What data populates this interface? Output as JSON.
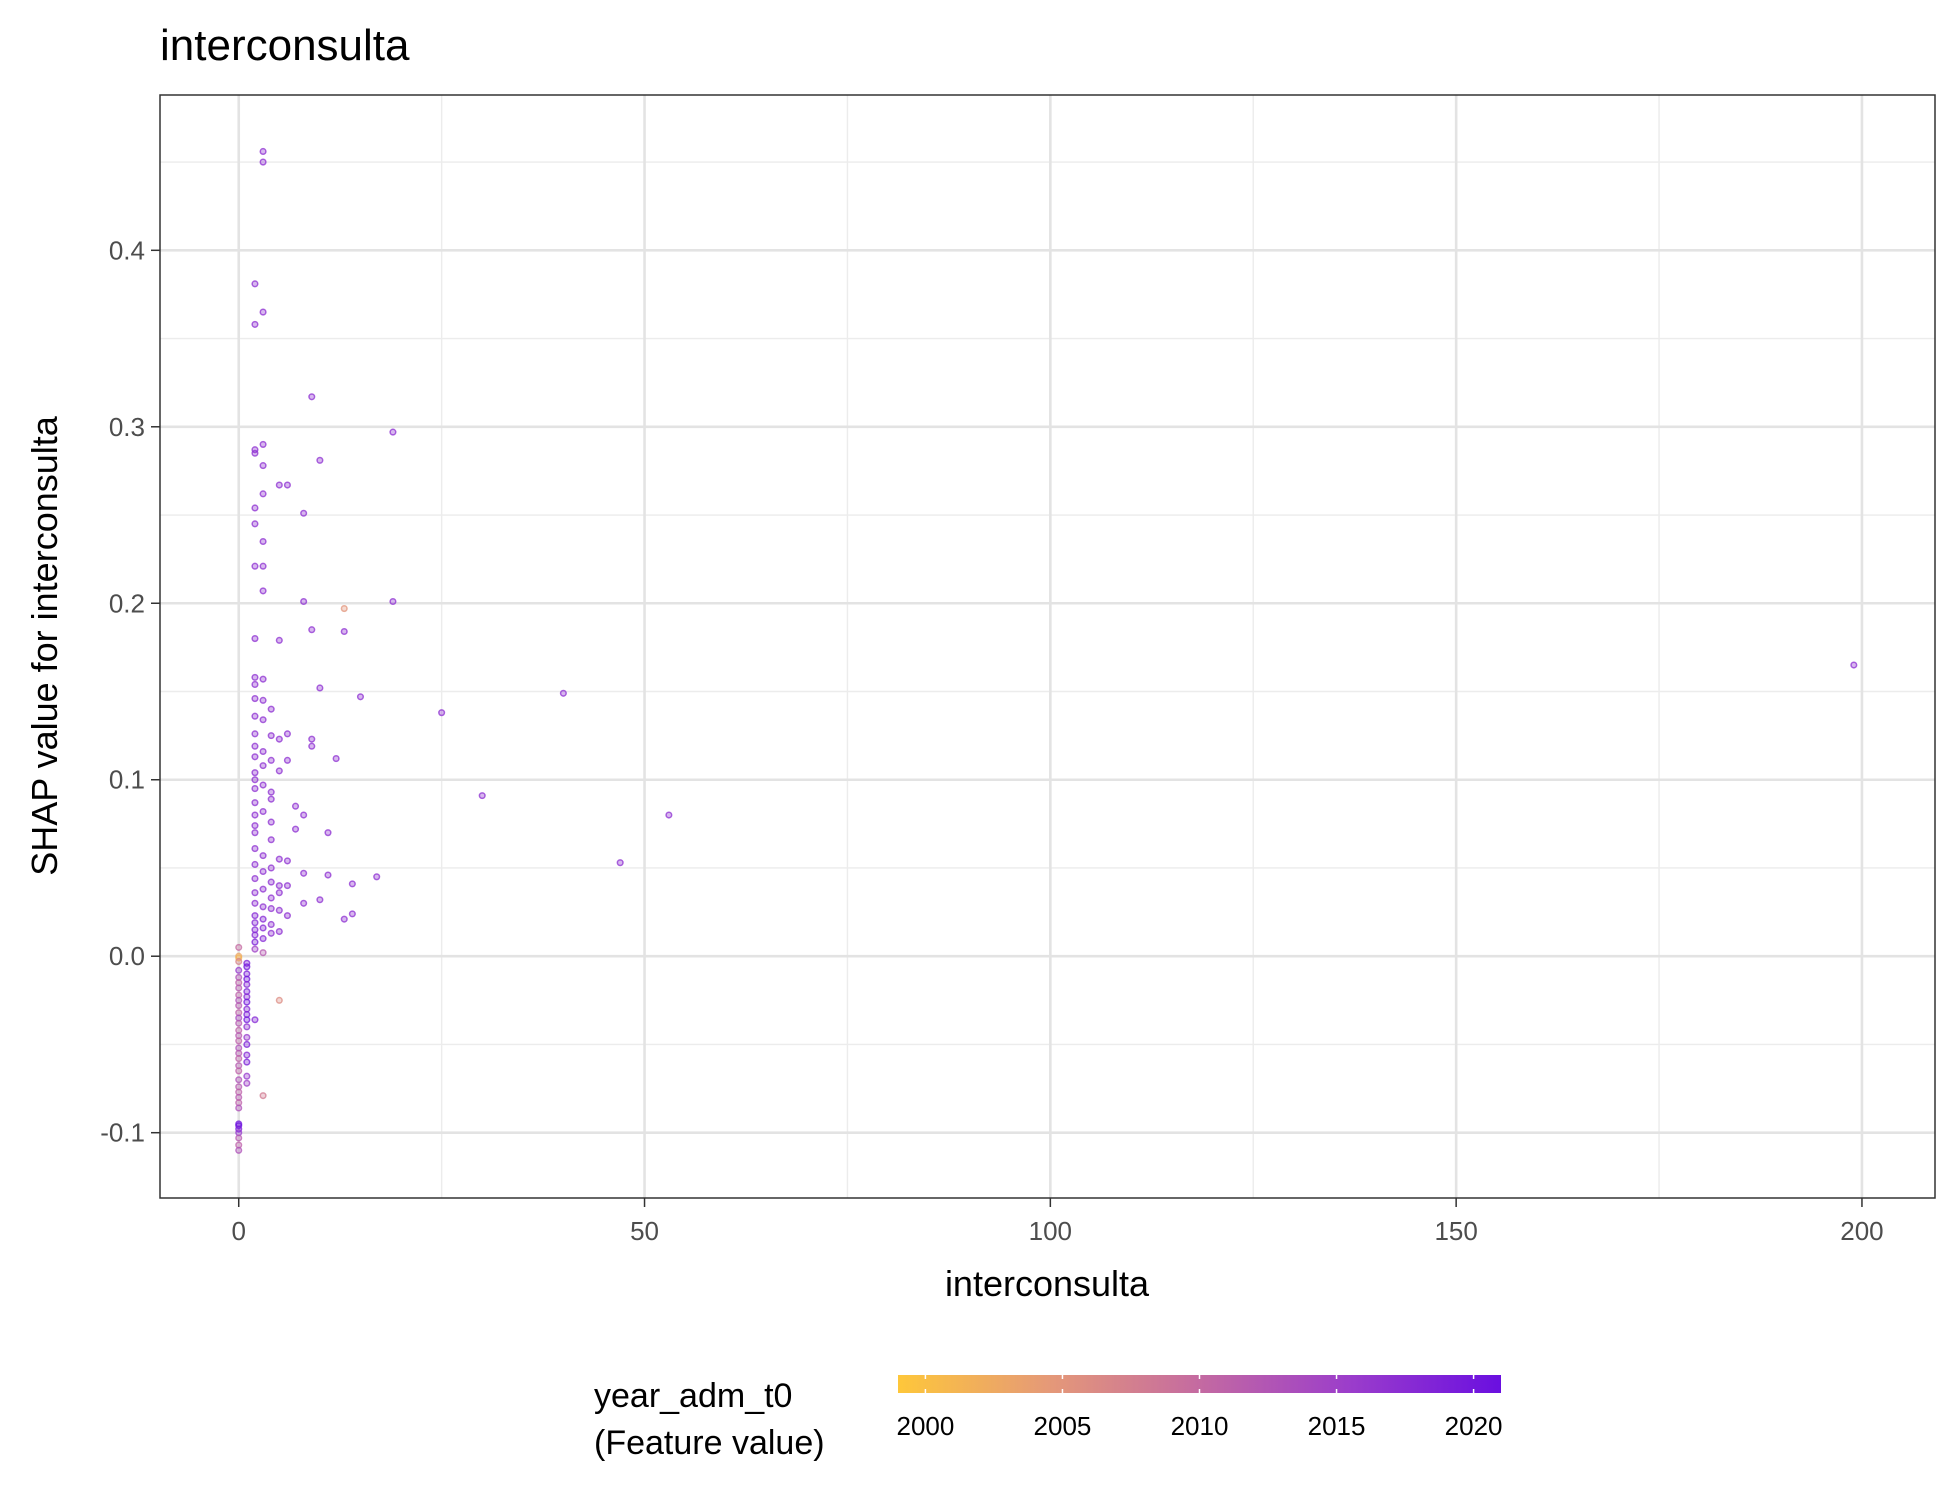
{
  "chart_data": {
    "type": "scatter",
    "title": "interconsulta",
    "xlabel": "interconsulta",
    "ylabel": "SHAP value for interconsulta",
    "xlim": [
      -9.7,
      209
    ],
    "ylim": [
      -0.137,
      0.488
    ],
    "x_ticks": [
      0,
      50,
      100,
      150,
      200
    ],
    "x_tick_labels": [
      "0",
      "50",
      "100",
      "150",
      "200"
    ],
    "y_ticks": [
      -0.1,
      0.0,
      0.1,
      0.2,
      0.3,
      0.4
    ],
    "y_tick_labels": [
      "-0.1",
      "0.0",
      "0.1",
      "0.2",
      "0.3",
      "0.4"
    ],
    "grid": true,
    "legend": {
      "title_line1": "year_adm_t0",
      "title_line2": "(Feature value)",
      "placement": "bottom",
      "range": [
        1999,
        2021
      ],
      "ticks": [
        2000,
        2005,
        2010,
        2015,
        2020
      ],
      "tick_labels": [
        "2000",
        "2005",
        "2010",
        "2015",
        "2020"
      ],
      "colors": [
        "#FEC73A",
        "#E59978",
        "#C46AA1",
        "#9B3DCB",
        "#6A0FE0"
      ]
    },
    "points": [
      [
        3,
        0.456,
        2017
      ],
      [
        3,
        0.45,
        2017
      ],
      [
        2,
        0.381,
        2017
      ],
      [
        3,
        0.365,
        2017
      ],
      [
        2,
        0.358,
        2017
      ],
      [
        9,
        0.317,
        2017
      ],
      [
        19,
        0.297,
        2017
      ],
      [
        3,
        0.29,
        2017
      ],
      [
        2,
        0.287,
        2017
      ],
      [
        2,
        0.285,
        2017
      ],
      [
        10,
        0.281,
        2017
      ],
      [
        3,
        0.278,
        2017
      ],
      [
        5,
        0.267,
        2017
      ],
      [
        6,
        0.267,
        2017
      ],
      [
        3,
        0.262,
        2017
      ],
      [
        2,
        0.254,
        2017
      ],
      [
        8,
        0.251,
        2017
      ],
      [
        2,
        0.245,
        2017
      ],
      [
        3,
        0.235,
        2017
      ],
      [
        2,
        0.221,
        2017
      ],
      [
        3,
        0.221,
        2017
      ],
      [
        3,
        0.207,
        2017
      ],
      [
        8,
        0.201,
        2017
      ],
      [
        19,
        0.201,
        2017
      ],
      [
        13,
        0.197,
        2005
      ],
      [
        9,
        0.185,
        2017
      ],
      [
        13,
        0.184,
        2017
      ],
      [
        2,
        0.18,
        2017
      ],
      [
        5,
        0.179,
        2017
      ],
      [
        40,
        0.149,
        2017
      ],
      [
        199,
        0.165,
        2017
      ],
      [
        2,
        0.158,
        2017
      ],
      [
        3,
        0.157,
        2017
      ],
      [
        2,
        0.154,
        2017
      ],
      [
        10,
        0.152,
        2017
      ],
      [
        15,
        0.147,
        2017
      ],
      [
        2,
        0.146,
        2017
      ],
      [
        3,
        0.145,
        2017
      ],
      [
        4,
        0.14,
        2017
      ],
      [
        25,
        0.138,
        2017
      ],
      [
        2,
        0.136,
        2017
      ],
      [
        3,
        0.134,
        2017
      ],
      [
        2,
        0.126,
        2017
      ],
      [
        4,
        0.125,
        2017
      ],
      [
        6,
        0.126,
        2017
      ],
      [
        9,
        0.123,
        2017
      ],
      [
        5,
        0.123,
        2017
      ],
      [
        9,
        0.119,
        2017
      ],
      [
        2,
        0.119,
        2017
      ],
      [
        3,
        0.116,
        2017
      ],
      [
        2,
        0.113,
        2017
      ],
      [
        4,
        0.111,
        2017
      ],
      [
        6,
        0.111,
        2017
      ],
      [
        12,
        0.112,
        2017
      ],
      [
        3,
        0.108,
        2017
      ],
      [
        2,
        0.104,
        2017
      ],
      [
        5,
        0.105,
        2017
      ],
      [
        2,
        0.1,
        2017
      ],
      [
        3,
        0.097,
        2017
      ],
      [
        2,
        0.095,
        2017
      ],
      [
        4,
        0.093,
        2017
      ],
      [
        30,
        0.091,
        2017
      ],
      [
        4,
        0.089,
        2017
      ],
      [
        2,
        0.087,
        2017
      ],
      [
        7,
        0.085,
        2017
      ],
      [
        3,
        0.082,
        2017
      ],
      [
        2,
        0.08,
        2017
      ],
      [
        8,
        0.08,
        2017
      ],
      [
        53,
        0.08,
        2017
      ],
      [
        4,
        0.076,
        2017
      ],
      [
        2,
        0.074,
        2017
      ],
      [
        7,
        0.072,
        2017
      ],
      [
        11,
        0.07,
        2017
      ],
      [
        2,
        0.07,
        2017
      ],
      [
        4,
        0.066,
        2017
      ],
      [
        2,
        0.061,
        2017
      ],
      [
        3,
        0.057,
        2017
      ],
      [
        5,
        0.055,
        2017
      ],
      [
        6,
        0.054,
        2017
      ],
      [
        47,
        0.053,
        2017
      ],
      [
        2,
        0.052,
        2017
      ],
      [
        4,
        0.05,
        2017
      ],
      [
        3,
        0.048,
        2017
      ],
      [
        8,
        0.047,
        2017
      ],
      [
        17,
        0.045,
        2017
      ],
      [
        11,
        0.046,
        2017
      ],
      [
        2,
        0.044,
        2017
      ],
      [
        4,
        0.042,
        2017
      ],
      [
        5,
        0.04,
        2017
      ],
      [
        14,
        0.041,
        2017
      ],
      [
        6,
        0.04,
        2017
      ],
      [
        3,
        0.038,
        2017
      ],
      [
        2,
        0.036,
        2017
      ],
      [
        5,
        0.036,
        2017
      ],
      [
        4,
        0.033,
        2017
      ],
      [
        10,
        0.032,
        2017
      ],
      [
        8,
        0.03,
        2017
      ],
      [
        2,
        0.03,
        2017
      ],
      [
        3,
        0.028,
        2017
      ],
      [
        4,
        0.027,
        2017
      ],
      [
        5,
        0.026,
        2017
      ],
      [
        6,
        0.023,
        2017
      ],
      [
        14,
        0.024,
        2017
      ],
      [
        13,
        0.021,
        2017
      ],
      [
        2,
        0.023,
        2018
      ],
      [
        3,
        0.021,
        2018
      ],
      [
        2,
        0.019,
        2018
      ],
      [
        4,
        0.018,
        2017
      ],
      [
        3,
        0.016,
        2018
      ],
      [
        2,
        0.015,
        2018
      ],
      [
        5,
        0.014,
        2017
      ],
      [
        4,
        0.013,
        2017
      ],
      [
        2,
        0.012,
        2018
      ],
      [
        3,
        0.01,
        2018
      ],
      [
        2,
        0.008,
        2019
      ],
      [
        3,
        0.002,
        2012
      ],
      [
        2,
        0.004,
        2015
      ],
      [
        0,
        0.005,
        2010
      ],
      [
        0,
        0.0,
        2003
      ],
      [
        0,
        -0.001,
        2001
      ],
      [
        0,
        -0.003,
        2007
      ],
      [
        1,
        -0.004,
        2019
      ],
      [
        1,
        -0.006,
        2020
      ],
      [
        0,
        -0.008,
        2016
      ],
      [
        1,
        -0.01,
        2019
      ],
      [
        0,
        -0.012,
        2013
      ],
      [
        1,
        -0.013,
        2020
      ],
      [
        0,
        -0.015,
        2011
      ],
      [
        1,
        -0.016,
        2018
      ],
      [
        0,
        -0.018,
        2012
      ],
      [
        1,
        -0.02,
        2019
      ],
      [
        0,
        -0.022,
        2011
      ],
      [
        1,
        -0.023,
        2018
      ],
      [
        0,
        -0.025,
        2013
      ],
      [
        5,
        -0.025,
        2006
      ],
      [
        1,
        -0.026,
        2020
      ],
      [
        0,
        -0.028,
        2012
      ],
      [
        1,
        -0.03,
        2018
      ],
      [
        0,
        -0.032,
        2011
      ],
      [
        1,
        -0.033,
        2019
      ],
      [
        0,
        -0.035,
        2014
      ],
      [
        1,
        -0.036,
        2020
      ],
      [
        2,
        -0.036,
        2018
      ],
      [
        0,
        -0.038,
        2012
      ],
      [
        1,
        -0.04,
        2017
      ],
      [
        0,
        -0.042,
        2011
      ],
      [
        0,
        -0.045,
        2012
      ],
      [
        1,
        -0.046,
        2016
      ],
      [
        0,
        -0.048,
        2011
      ],
      [
        1,
        -0.05,
        2019
      ],
      [
        0,
        -0.052,
        2013
      ],
      [
        0,
        -0.055,
        2012
      ],
      [
        1,
        -0.056,
        2018
      ],
      [
        0,
        -0.058,
        2011
      ],
      [
        1,
        -0.06,
        2019
      ],
      [
        0,
        -0.062,
        2012
      ],
      [
        0,
        -0.065,
        2011
      ],
      [
        1,
        -0.068,
        2016
      ],
      [
        0,
        -0.07,
        2013
      ],
      [
        1,
        -0.072,
        2015
      ],
      [
        0,
        -0.074,
        2012
      ],
      [
        0,
        -0.077,
        2011
      ],
      [
        3,
        -0.079,
        2008
      ],
      [
        0,
        -0.08,
        2012
      ],
      [
        0,
        -0.083,
        2011
      ],
      [
        0,
        -0.086,
        2013
      ],
      [
        0,
        -0.095,
        2020
      ],
      [
        0,
        -0.096,
        2021
      ],
      [
        0,
        -0.098,
        2019
      ],
      [
        0,
        -0.1,
        2016
      ],
      [
        0,
        -0.103,
        2012
      ],
      [
        0,
        -0.107,
        2011
      ],
      [
        0,
        -0.11,
        2013
      ]
    ]
  }
}
